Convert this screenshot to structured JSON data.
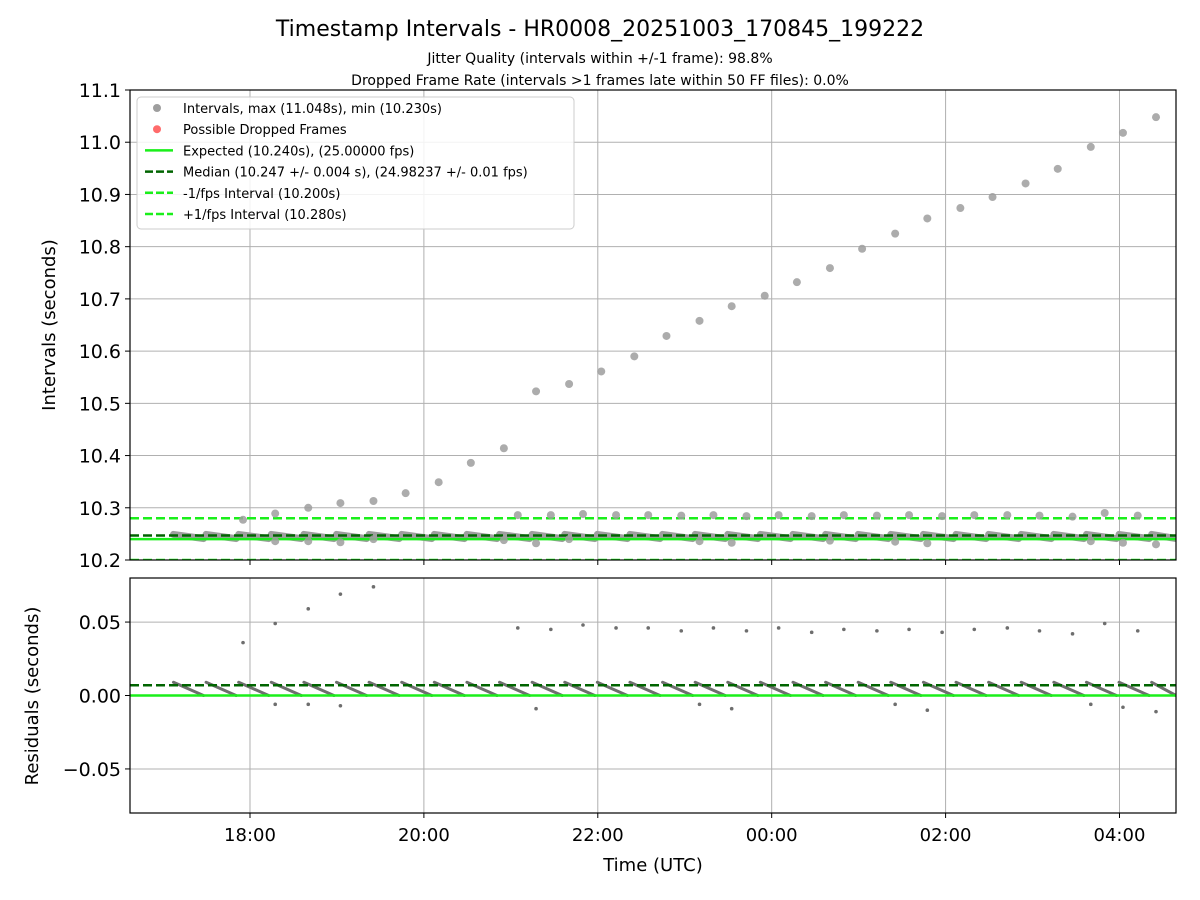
{
  "title": "Timestamp Intervals - HR0008_20251003_170845_199222",
  "subtitle_jitter": "Jitter Quality (intervals within +/-1 frame): 98.8%",
  "subtitle_dropped": "Dropped Frame Rate (intervals >1 frames late within 50 FF files): 0.0%",
  "colors": {
    "points": "#9e9e9e",
    "residual_points": "#6e6e6e",
    "dropped": "#ff6b6b",
    "expected": "#1aef1a",
    "median": "#006400",
    "bound": "#1aef1a",
    "grid": "#b0b0b0"
  },
  "chart_data": [
    {
      "type": "scatter",
      "panel": "intervals",
      "ylabel": "Intervals (seconds)",
      "ylim": [
        10.2,
        11.1
      ],
      "yticks": [
        "10.2",
        "10.3",
        "10.4",
        "10.5",
        "10.6",
        "10.7",
        "10.8",
        "10.9",
        "11.0",
        "11.1"
      ],
      "xlim_hours": [
        16.62,
        28.65
      ],
      "grid": true,
      "legend_position": "top-left",
      "legend": [
        {
          "label": "Intervals, max (11.048s), min (10.230s)",
          "kind": "point-gray"
        },
        {
          "label": "Possible Dropped Frames",
          "kind": "point-red"
        },
        {
          "label": "Expected (10.240s), (25.00000 fps)",
          "kind": "line-solid-green"
        },
        {
          "label": "Median (10.247 +/- 0.004 s), (24.98237 +/- 0.01 fps)",
          "kind": "line-dashed-darkgreen"
        },
        {
          "label": "-1/fps Interval (10.200s)",
          "kind": "line-dashed-green"
        },
        {
          "label": "+1/fps Interval (10.280s)",
          "kind": "line-dashed-green"
        }
      ],
      "hlines": {
        "expected": 10.24,
        "median": 10.247,
        "minus_fps": 10.2,
        "plus_fps": 10.28
      },
      "outliers": [
        [
          17.92,
          10.277
        ],
        [
          18.29,
          10.289
        ],
        [
          18.67,
          10.3
        ],
        [
          19.04,
          10.309
        ],
        [
          19.42,
          10.313
        ],
        [
          19.79,
          10.328
        ],
        [
          20.17,
          10.349
        ],
        [
          20.54,
          10.386
        ],
        [
          20.92,
          10.414
        ],
        [
          21.29,
          10.523
        ],
        [
          21.67,
          10.537
        ],
        [
          22.04,
          10.561
        ],
        [
          22.42,
          10.59
        ],
        [
          22.79,
          10.629
        ],
        [
          23.17,
          10.658
        ],
        [
          23.54,
          10.686
        ],
        [
          23.92,
          10.706
        ],
        [
          24.29,
          10.732
        ],
        [
          24.67,
          10.759
        ],
        [
          25.04,
          10.796
        ],
        [
          25.42,
          10.825
        ],
        [
          25.79,
          10.854
        ],
        [
          26.17,
          10.874
        ],
        [
          26.54,
          10.895
        ],
        [
          26.92,
          10.921
        ],
        [
          27.29,
          10.949
        ],
        [
          27.67,
          10.991
        ],
        [
          28.04,
          11.018
        ],
        [
          28.42,
          11.048
        ]
      ],
      "secondary_points": [
        [
          21.08,
          10.286
        ],
        [
          21.46,
          10.286
        ],
        [
          21.83,
          10.288
        ],
        [
          22.21,
          10.286
        ],
        [
          22.58,
          10.286
        ],
        [
          22.96,
          10.285
        ],
        [
          23.33,
          10.286
        ],
        [
          23.71,
          10.284
        ],
        [
          24.08,
          10.286
        ],
        [
          24.46,
          10.284
        ],
        [
          24.83,
          10.286
        ],
        [
          25.21,
          10.285
        ],
        [
          25.58,
          10.286
        ],
        [
          25.96,
          10.284
        ],
        [
          26.33,
          10.286
        ],
        [
          26.71,
          10.286
        ],
        [
          27.08,
          10.285
        ],
        [
          27.46,
          10.283
        ],
        [
          27.83,
          10.29
        ],
        [
          28.21,
          10.285
        ],
        [
          18.29,
          10.236
        ],
        [
          18.67,
          10.236
        ],
        [
          19.04,
          10.234
        ],
        [
          19.42,
          10.24
        ],
        [
          20.92,
          10.238
        ],
        [
          21.29,
          10.232
        ],
        [
          21.67,
          10.24
        ],
        [
          23.17,
          10.236
        ],
        [
          23.54,
          10.233
        ],
        [
          24.67,
          10.237
        ],
        [
          25.42,
          10.235
        ],
        [
          25.79,
          10.232
        ],
        [
          27.67,
          10.236
        ],
        [
          28.04,
          10.233
        ],
        [
          28.42,
          10.23
        ]
      ],
      "band": {
        "start_hour": 17.12,
        "end_hour": 28.65,
        "period_hours": 0.375,
        "y_high": 10.249,
        "y_low": 10.241
      }
    },
    {
      "type": "scatter",
      "panel": "residuals",
      "xlabel": "Time (UTC)",
      "ylabel": "Residuals (seconds)",
      "ylim": [
        -0.08,
        0.08
      ],
      "yticks": [
        {
          "value": 0.05,
          "label": "0.05"
        },
        {
          "value": 0.0,
          "label": "0.00"
        },
        {
          "value": -0.05,
          "label": "−0.05"
        }
      ],
      "xticks": [
        {
          "hour": 18,
          "label": "18:00"
        },
        {
          "hour": 20,
          "label": "20:00"
        },
        {
          "hour": 22,
          "label": "22:00"
        },
        {
          "hour": 24,
          "label": "00:00"
        },
        {
          "hour": 26,
          "label": "02:00"
        },
        {
          "hour": 28,
          "label": "04:00"
        }
      ],
      "hlines": {
        "zero": 0.0,
        "median_offset": 0.007
      },
      "outliers": [
        [
          17.92,
          0.036
        ],
        [
          18.29,
          0.049
        ],
        [
          18.67,
          0.059
        ],
        [
          19.04,
          0.069
        ],
        [
          19.42,
          0.074
        ],
        [
          21.08,
          0.046
        ],
        [
          21.46,
          0.045
        ],
        [
          21.83,
          0.048
        ],
        [
          22.21,
          0.046
        ],
        [
          22.58,
          0.046
        ],
        [
          22.96,
          0.044
        ],
        [
          23.33,
          0.046
        ],
        [
          23.71,
          0.044
        ],
        [
          24.08,
          0.046
        ],
        [
          24.46,
          0.043
        ],
        [
          24.83,
          0.045
        ],
        [
          25.21,
          0.044
        ],
        [
          25.58,
          0.045
        ],
        [
          25.96,
          0.043
        ],
        [
          26.33,
          0.045
        ],
        [
          26.71,
          0.046
        ],
        [
          27.08,
          0.044
        ],
        [
          27.46,
          0.042
        ],
        [
          27.83,
          0.049
        ],
        [
          28.21,
          0.044
        ],
        [
          18.29,
          -0.006
        ],
        [
          18.67,
          -0.006
        ],
        [
          19.04,
          -0.007
        ],
        [
          21.29,
          -0.009
        ],
        [
          23.17,
          -0.006
        ],
        [
          23.54,
          -0.009
        ],
        [
          25.42,
          -0.006
        ],
        [
          25.79,
          -0.01
        ],
        [
          27.67,
          -0.006
        ],
        [
          28.04,
          -0.008
        ],
        [
          28.42,
          -0.011
        ]
      ],
      "band": {
        "start_hour": 17.12,
        "end_hour": 28.65,
        "period_hours": 0.375,
        "y_high": 0.009,
        "y_low": 0.0
      }
    }
  ]
}
